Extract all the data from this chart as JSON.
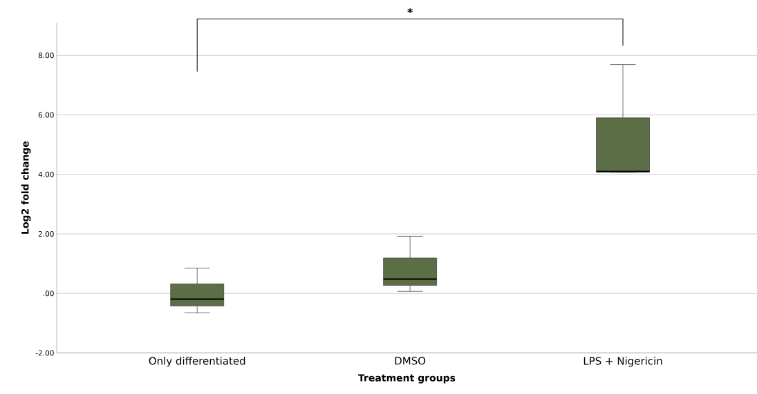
{
  "chart_data": {
    "type": "box",
    "xlabel": "Treatment groups",
    "ylabel": "Log2 fold change",
    "categories": [
      "Only differentiated",
      "DMSO",
      "LPS + Nigericin"
    ],
    "boxes": [
      {
        "low": -0.65,
        "q1": -0.42,
        "median": -0.19,
        "q3": 0.32,
        "high": 0.85
      },
      {
        "low": 0.07,
        "q1": 0.27,
        "median": 0.48,
        "q3": 1.19,
        "high": 1.92
      },
      {
        "low": 4.07,
        "q1": 4.08,
        "median": 4.1,
        "q3": 5.9,
        "high": 7.69
      }
    ],
    "color": "#5b6e45",
    "ylim": [
      -2,
      9.1
    ],
    "yticks": [
      {
        "value": -2,
        "label": "-2.00"
      },
      {
        "value": 0,
        "label": ".00"
      },
      {
        "value": 2,
        "label": "2.00"
      },
      {
        "value": 4,
        "label": "4.00"
      },
      {
        "value": 6,
        "label": "6.00"
      },
      {
        "value": 8,
        "label": "8.00"
      }
    ],
    "grid": "y",
    "annotations": [
      "*"
    ]
  }
}
